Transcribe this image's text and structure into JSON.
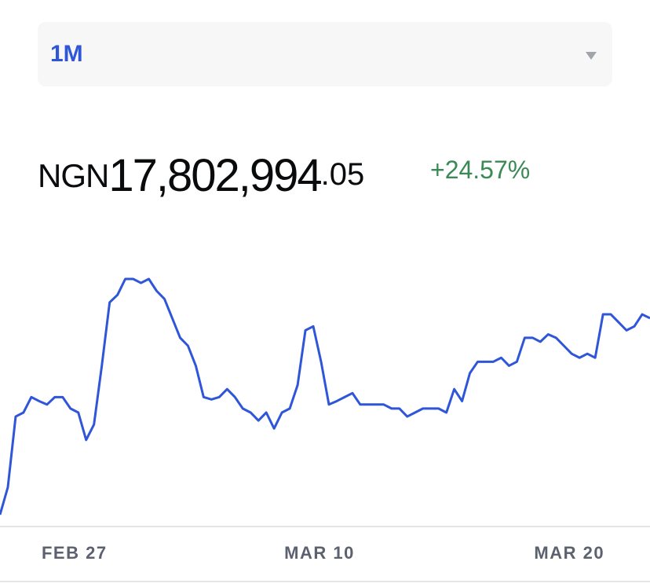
{
  "period_selector": {
    "label": "1M"
  },
  "price": {
    "currency": "NGN",
    "integer": "17,802,994",
    "decimal": ".05",
    "change": "+24.57%"
  },
  "chart_data": {
    "type": "line",
    "color": "#2f56d8",
    "values": [
      14360000,
      14840000,
      16080000,
      16150000,
      16420000,
      16350000,
      16290000,
      16420000,
      16420000,
      16220000,
      16150000,
      15670000,
      15940000,
      16970000,
      18080000,
      18210000,
      18490000,
      18490000,
      18420000,
      18490000,
      18280000,
      18140000,
      17800000,
      17460000,
      17320000,
      16970000,
      16420000,
      16380000,
      16420000,
      16560000,
      16420000,
      16220000,
      16150000,
      16010000,
      16150000,
      15870000,
      16150000,
      16220000,
      16630000,
      17590000,
      17660000,
      17040000,
      16290000,
      16350000,
      16420000,
      16490000,
      16290000,
      16290000,
      16290000,
      16290000,
      16220000,
      16220000,
      16080000,
      16150000,
      16220000,
      16220000,
      16220000,
      16150000,
      16560000,
      16350000,
      16840000,
      17040000,
      17040000,
      17040000,
      17110000,
      16970000,
      17040000,
      17460000,
      17460000,
      17390000,
      17520000,
      17460000,
      17320000,
      17180000,
      17110000,
      17180000,
      17110000,
      17870000,
      17870000,
      17730000,
      17590000,
      17660000,
      17870000,
      17802994.05
    ],
    "xticks": [
      {
        "value": 9.5,
        "label": "FEB 27"
      },
      {
        "value": 40.8,
        "label": "MAR 10"
      },
      {
        "value": 72.7,
        "label": "MAR 20"
      }
    ]
  }
}
